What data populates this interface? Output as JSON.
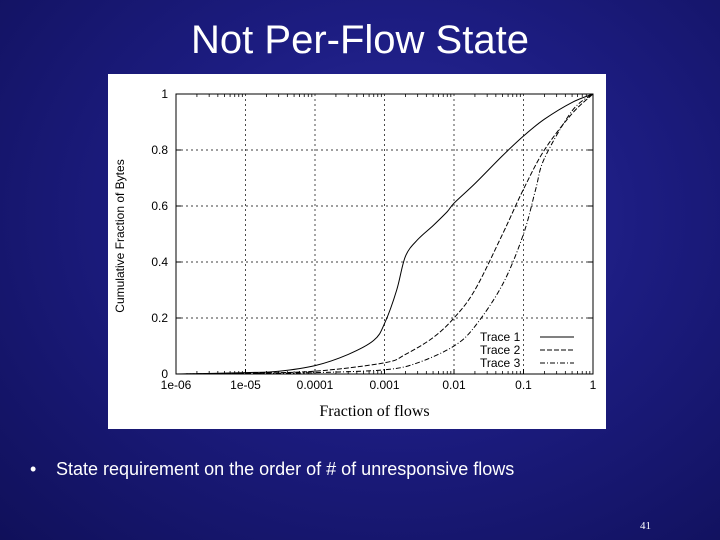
{
  "slide": {
    "title": "Not Per-Flow State",
    "bullet": "State requirement on the order of  # of unresponsive flows",
    "bullet_marker": "•",
    "page_number": "41",
    "background_color": "#1c1c80"
  },
  "chart_data": {
    "type": "line",
    "xlabel": "Fraction of flows",
    "ylabel": "Cumulative Fraction of Bytes",
    "xscale": "log",
    "xlim": [
      1e-06,
      1
    ],
    "ylim": [
      0,
      1
    ],
    "x_ticks": [
      1e-06,
      1e-05,
      0.0001,
      0.001,
      0.01,
      0.1,
      1
    ],
    "x_tick_labels": [
      "1e-06",
      "1e-05",
      "0.0001",
      "0.001",
      "0.01",
      "0.1",
      "1"
    ],
    "y_ticks": [
      0,
      0.2,
      0.4,
      0.6,
      0.8,
      1
    ],
    "y_tick_labels": [
      "0",
      "0.2",
      "0.4",
      "0.6",
      "0.8",
      "1"
    ],
    "grid": true,
    "legend_position": "bottom-right",
    "series": [
      {
        "name": "Trace 1",
        "style": "solid",
        "x": [
          1e-06,
          1e-05,
          3e-05,
          0.0001,
          0.0003,
          0.0007,
          0.001,
          0.0015,
          0.002,
          0.003,
          0.005,
          0.008,
          0.01,
          0.02,
          0.05,
          0.1,
          0.2,
          0.5,
          1
        ],
        "y": [
          0,
          0.005,
          0.01,
          0.03,
          0.07,
          0.12,
          0.18,
          0.3,
          0.42,
          0.48,
          0.53,
          0.58,
          0.61,
          0.68,
          0.78,
          0.85,
          0.91,
          0.97,
          1
        ]
      },
      {
        "name": "Trace 2",
        "style": "dashed",
        "x": [
          1e-06,
          1e-05,
          0.0001,
          0.001,
          0.002,
          0.005,
          0.01,
          0.02,
          0.05,
          0.1,
          0.2,
          0.5,
          1
        ],
        "y": [
          0,
          0.003,
          0.01,
          0.04,
          0.07,
          0.13,
          0.2,
          0.3,
          0.5,
          0.66,
          0.8,
          0.93,
          1
        ]
      },
      {
        "name": "Trace 3",
        "style": "dash-dot",
        "x": [
          1e-06,
          1e-05,
          0.0001,
          0.001,
          0.003,
          0.01,
          0.02,
          0.05,
          0.1,
          0.15,
          0.2,
          0.5,
          1
        ],
        "y": [
          0,
          0.002,
          0.005,
          0.015,
          0.04,
          0.1,
          0.17,
          0.32,
          0.5,
          0.66,
          0.77,
          0.94,
          1
        ]
      }
    ]
  }
}
